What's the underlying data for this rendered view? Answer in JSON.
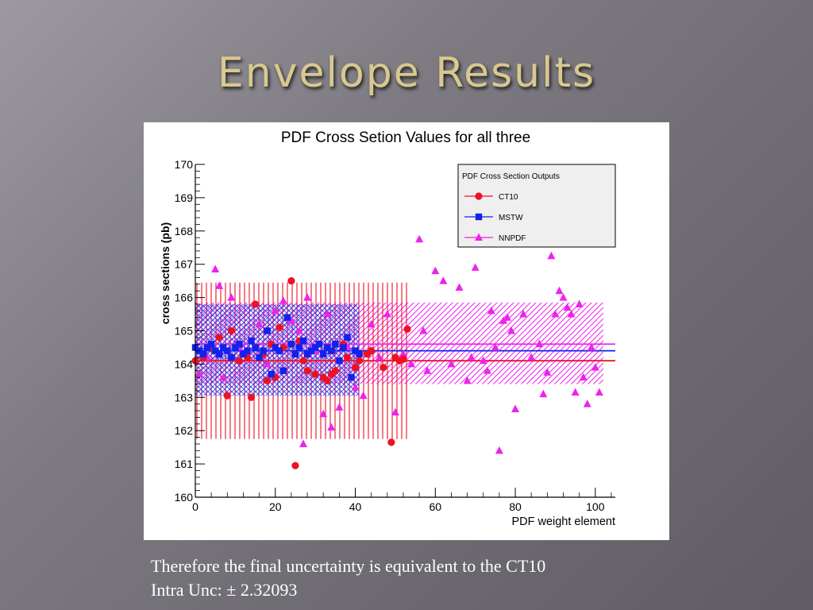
{
  "slide": {
    "title": "Envelope Results",
    "caption_line1": "Therefore the final uncertainty is equivalent to the CT10",
    "caption_line2": "Intra Unc: ± 2.32093"
  },
  "chart_data": {
    "type": "scatter",
    "title": "PDF Cross Setion Values for all three",
    "xlabel": "PDF weight element",
    "ylabel": "cross sections (pb)",
    "xlim": [
      0,
      105
    ],
    "ylim": [
      160,
      170
    ],
    "xticks": [
      0,
      20,
      40,
      60,
      80,
      100
    ],
    "yticks": [
      160,
      161,
      162,
      163,
      164,
      165,
      166,
      167,
      168,
      169,
      170
    ],
    "legend_title": "PDF Cross Section Outputs",
    "legend_position": "top-right",
    "grid": false,
    "series": [
      {
        "name": "CT10",
        "color": "#ee1122",
        "marker": "circle",
        "central": 164.1,
        "band": [
          161.75,
          166.45
        ],
        "band_x": [
          0,
          53
        ],
        "x": [
          0,
          2,
          4,
          6,
          8,
          9,
          11,
          13,
          14,
          15,
          17,
          18,
          19,
          20,
          21,
          22,
          24,
          25,
          26,
          27,
          28,
          30,
          32,
          33,
          34,
          35,
          37,
          38,
          40,
          41,
          43,
          44,
          47,
          49,
          50,
          51,
          52,
          53
        ],
        "y": [
          164.1,
          164.2,
          164.5,
          164.8,
          163.05,
          165.0,
          164.1,
          164.2,
          163.0,
          165.8,
          164.3,
          163.5,
          164.6,
          163.6,
          165.1,
          164.5,
          166.5,
          160.95,
          164.7,
          164.1,
          163.8,
          163.7,
          163.6,
          163.5,
          163.7,
          163.8,
          164.6,
          164.2,
          163.9,
          164.1,
          164.3,
          164.4,
          163.9,
          161.65,
          164.2,
          164.1,
          164.15,
          165.05
        ]
      },
      {
        "name": "MSTW",
        "color": "#1122ee",
        "marker": "square",
        "central": 164.4,
        "band": [
          163.05,
          165.8
        ],
        "band_x": [
          0,
          41
        ],
        "x": [
          0,
          1,
          2,
          3,
          4,
          5,
          6,
          7,
          8,
          9,
          10,
          11,
          12,
          13,
          14,
          15,
          16,
          17,
          18,
          19,
          20,
          21,
          22,
          23,
          24,
          25,
          26,
          27,
          28,
          29,
          30,
          31,
          32,
          33,
          34,
          35,
          36,
          37,
          38,
          39,
          40,
          41
        ],
        "y": [
          164.5,
          164.4,
          164.3,
          164.5,
          164.6,
          164.4,
          164.3,
          164.5,
          164.4,
          164.2,
          164.5,
          164.6,
          164.3,
          164.4,
          164.7,
          164.5,
          164.2,
          164.4,
          165.0,
          163.7,
          164.5,
          164.4,
          163.8,
          165.4,
          164.6,
          164.3,
          164.5,
          164.7,
          164.3,
          164.4,
          164.5,
          164.6,
          164.3,
          164.5,
          164.4,
          164.6,
          164.1,
          164.5,
          164.8,
          163.6,
          164.4,
          164.3
        ]
      },
      {
        "name": "NNPDF",
        "color": "#ee22ee",
        "marker": "triangle",
        "central": 164.6,
        "band": [
          163.4,
          165.85
        ],
        "band_x": [
          0,
          102
        ],
        "x": [
          1,
          3,
          5,
          6,
          7,
          9,
          11,
          13,
          16,
          18,
          20,
          22,
          24,
          26,
          27,
          28,
          30,
          32,
          33,
          34,
          36,
          38,
          40,
          42,
          44,
          46,
          48,
          50,
          52,
          54,
          56,
          57,
          58,
          60,
          62,
          64,
          66,
          68,
          69,
          70,
          72,
          73,
          74,
          75,
          76,
          77,
          78,
          79,
          80,
          82,
          84,
          86,
          87,
          88,
          89,
          90,
          91,
          92,
          93,
          94,
          95,
          96,
          97,
          98,
          99,
          100,
          101
        ],
        "y": [
          163.7,
          164.2,
          166.85,
          166.35,
          163.6,
          166.0,
          164.5,
          164.3,
          165.2,
          164.0,
          165.6,
          165.9,
          165.3,
          165.0,
          161.6,
          166.0,
          164.4,
          162.5,
          165.5,
          162.1,
          162.7,
          164.5,
          163.3,
          163.05,
          165.2,
          164.2,
          165.5,
          162.55,
          164.3,
          164.0,
          167.75,
          165.0,
          163.8,
          166.8,
          166.5,
          164.0,
          166.3,
          163.5,
          164.2,
          166.9,
          164.1,
          163.8,
          165.6,
          164.5,
          161.4,
          165.3,
          165.4,
          165.0,
          162.65,
          165.5,
          164.2,
          164.6,
          163.1,
          163.75,
          167.25,
          165.5,
          166.2,
          166.0,
          165.7,
          165.5,
          163.15,
          165.8,
          163.6,
          162.8,
          164.5,
          163.9,
          163.15
        ]
      }
    ]
  }
}
